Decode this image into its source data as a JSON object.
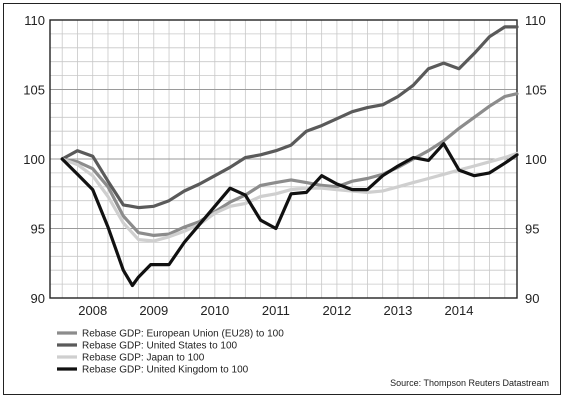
{
  "chart_data": {
    "type": "line",
    "title": "",
    "xlabel": "",
    "ylabel": "",
    "ylim": [
      90,
      110
    ],
    "yticks": [
      90,
      95,
      100,
      105,
      110
    ],
    "xlim": [
      2007.3,
      2014.95
    ],
    "x_tick_labels": [
      "2008",
      "2009",
      "2010",
      "2011",
      "2012",
      "2013",
      "2014"
    ],
    "grid": true,
    "legend_position": "bottom-left",
    "source": "Source: Thompson Reuters Datastream",
    "series": [
      {
        "name": "Rebase GDP: European Union (EU28) to 100",
        "color": "#8c8c8c",
        "points": [
          [
            2007.5,
            100.0
          ],
          [
            2007.75,
            99.8
          ],
          [
            2008.0,
            99.3
          ],
          [
            2008.25,
            98.0
          ],
          [
            2008.5,
            95.9
          ],
          [
            2008.75,
            94.7
          ],
          [
            2009.0,
            94.5
          ],
          [
            2009.25,
            94.6
          ],
          [
            2009.5,
            95.1
          ],
          [
            2009.75,
            95.5
          ],
          [
            2010.0,
            96.2
          ],
          [
            2010.25,
            96.9
          ],
          [
            2010.5,
            97.4
          ],
          [
            2010.75,
            98.1
          ],
          [
            2011.0,
            98.3
          ],
          [
            2011.25,
            98.5
          ],
          [
            2011.5,
            98.3
          ],
          [
            2011.75,
            98.1
          ],
          [
            2012.0,
            98.0
          ],
          [
            2012.25,
            98.4
          ],
          [
            2012.5,
            98.6
          ],
          [
            2012.75,
            98.9
          ],
          [
            2013.0,
            99.4
          ],
          [
            2013.25,
            100.0
          ],
          [
            2013.5,
            100.6
          ],
          [
            2013.75,
            101.3
          ],
          [
            2014.0,
            102.2
          ],
          [
            2014.25,
            103.0
          ],
          [
            2014.5,
            103.8
          ],
          [
            2014.75,
            104.5
          ],
          [
            2014.95,
            104.7
          ]
        ]
      },
      {
        "name": "Rebase GDP: United States to 100",
        "color": "#5a5a5a",
        "points": [
          [
            2007.5,
            100.0
          ],
          [
            2007.75,
            100.6
          ],
          [
            2008.0,
            100.2
          ],
          [
            2008.25,
            98.4
          ],
          [
            2008.5,
            96.7
          ],
          [
            2008.75,
            96.5
          ],
          [
            2009.0,
            96.6
          ],
          [
            2009.25,
            97.0
          ],
          [
            2009.5,
            97.7
          ],
          [
            2009.75,
            98.2
          ],
          [
            2010.0,
            98.8
          ],
          [
            2010.25,
            99.4
          ],
          [
            2010.5,
            100.1
          ],
          [
            2010.75,
            100.3
          ],
          [
            2011.0,
            100.6
          ],
          [
            2011.25,
            101.0
          ],
          [
            2011.5,
            102.0
          ],
          [
            2011.75,
            102.4
          ],
          [
            2012.0,
            102.9
          ],
          [
            2012.25,
            103.4
          ],
          [
            2012.5,
            103.7
          ],
          [
            2012.75,
            103.9
          ],
          [
            2013.0,
            104.5
          ],
          [
            2013.25,
            105.3
          ],
          [
            2013.5,
            106.5
          ],
          [
            2013.75,
            106.9
          ],
          [
            2014.0,
            106.5
          ],
          [
            2014.25,
            107.6
          ],
          [
            2014.5,
            108.8
          ],
          [
            2014.75,
            109.5
          ],
          [
            2014.95,
            109.5
          ]
        ]
      },
      {
        "name": "Rebase GDP: Japan to 100",
        "color": "#cfcfcf",
        "points": [
          [
            2007.5,
            100.0
          ],
          [
            2007.75,
            99.6
          ],
          [
            2008.0,
            98.8
          ],
          [
            2008.25,
            97.3
          ],
          [
            2008.5,
            95.4
          ],
          [
            2008.75,
            94.2
          ],
          [
            2009.0,
            94.1
          ],
          [
            2009.25,
            94.4
          ],
          [
            2009.5,
            94.8
          ],
          [
            2009.75,
            95.3
          ],
          [
            2010.0,
            96.1
          ],
          [
            2010.25,
            96.6
          ],
          [
            2010.5,
            96.8
          ],
          [
            2010.75,
            97.3
          ],
          [
            2011.0,
            97.5
          ],
          [
            2011.25,
            97.8
          ],
          [
            2011.5,
            97.9
          ],
          [
            2011.75,
            97.9
          ],
          [
            2012.0,
            97.8
          ],
          [
            2012.25,
            97.7
          ],
          [
            2012.5,
            97.6
          ],
          [
            2012.75,
            97.7
          ],
          [
            2013.0,
            98.0
          ],
          [
            2013.25,
            98.3
          ],
          [
            2013.5,
            98.6
          ],
          [
            2013.75,
            98.9
          ],
          [
            2014.0,
            99.2
          ],
          [
            2014.25,
            99.5
          ],
          [
            2014.5,
            99.8
          ],
          [
            2014.75,
            100.1
          ],
          [
            2014.95,
            100.4
          ]
        ]
      },
      {
        "name": "Rebase GDP: United Kingdom to 100",
        "color": "#111111",
        "points": [
          [
            2007.5,
            100.0
          ],
          [
            2007.75,
            98.9
          ],
          [
            2008.0,
            97.8
          ],
          [
            2008.25,
            95.1
          ],
          [
            2008.5,
            92.0
          ],
          [
            2008.65,
            90.9
          ],
          [
            2008.75,
            91.5
          ],
          [
            2008.95,
            92.4
          ],
          [
            2009.25,
            92.4
          ],
          [
            2009.5,
            94.0
          ],
          [
            2009.75,
            95.3
          ],
          [
            2010.0,
            96.6
          ],
          [
            2010.25,
            97.9
          ],
          [
            2010.5,
            97.4
          ],
          [
            2010.75,
            95.6
          ],
          [
            2011.0,
            95.0
          ],
          [
            2011.25,
            97.5
          ],
          [
            2011.5,
            97.6
          ],
          [
            2011.75,
            98.8
          ],
          [
            2012.0,
            98.2
          ],
          [
            2012.25,
            97.8
          ],
          [
            2012.5,
            97.8
          ],
          [
            2012.75,
            98.8
          ],
          [
            2013.0,
            99.5
          ],
          [
            2013.25,
            100.1
          ],
          [
            2013.5,
            99.9
          ],
          [
            2013.75,
            101.1
          ],
          [
            2014.0,
            99.2
          ],
          [
            2014.25,
            98.8
          ],
          [
            2014.5,
            99.0
          ],
          [
            2014.75,
            99.7
          ],
          [
            2014.95,
            100.3
          ]
        ]
      }
    ]
  }
}
